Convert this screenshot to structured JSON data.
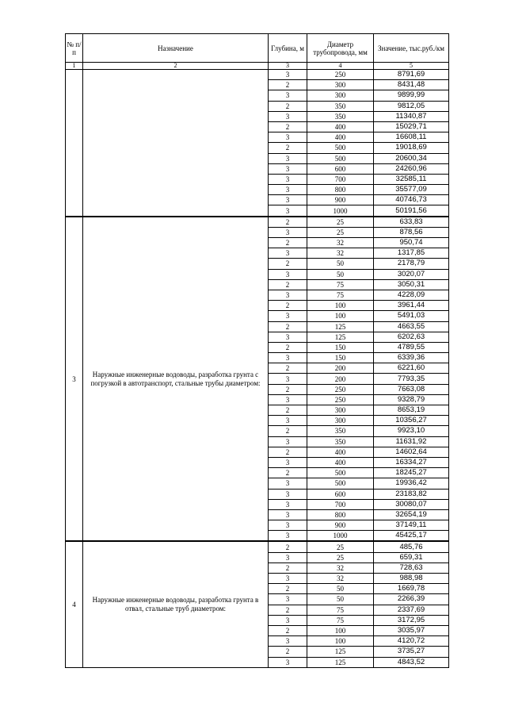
{
  "headers": [
    "№ п/п",
    "Назначение",
    "Глубина, м",
    "Диаметр трубопровода, мм",
    "Значение, тыс.руб./км"
  ],
  "column_numbers": [
    "1",
    "2",
    "3",
    "4",
    "5"
  ],
  "groups": [
    {
      "number": "",
      "description": "",
      "rows": [
        [
          "3",
          "250",
          "8791,69"
        ],
        [
          "2",
          "300",
          "8431,48"
        ],
        [
          "3",
          "300",
          "9899,99"
        ],
        [
          "2",
          "350",
          "9812,05"
        ],
        [
          "3",
          "350",
          "11340,87"
        ],
        [
          "2",
          "400",
          "15029,71"
        ],
        [
          "3",
          "400",
          "16608,11"
        ],
        [
          "2",
          "500",
          "19018,69"
        ],
        [
          "3",
          "500",
          "20600,34"
        ],
        [
          "3",
          "600",
          "24260,96"
        ],
        [
          "3",
          "700",
          "32585,11"
        ],
        [
          "3",
          "800",
          "35577,09"
        ],
        [
          "3",
          "900",
          "40746,73"
        ],
        [
          "3",
          "1000",
          "50191,56"
        ]
      ]
    },
    {
      "number": "3",
      "description": "Наружные инженерные водоводы, разработка грунта с погрузкой в автотранспорт, стальные трубы диаметром:",
      "rows": [
        [
          "2",
          "25",
          "633,83"
        ],
        [
          "3",
          "25",
          "878,56"
        ],
        [
          "2",
          "32",
          "950,74"
        ],
        [
          "3",
          "32",
          "1317,85"
        ],
        [
          "2",
          "50",
          "2178,79"
        ],
        [
          "3",
          "50",
          "3020,07"
        ],
        [
          "2",
          "75",
          "3050,31"
        ],
        [
          "3",
          "75",
          "4228,09"
        ],
        [
          "2",
          "100",
          "3961,44"
        ],
        [
          "3",
          "100",
          "5491,03"
        ],
        [
          "2",
          "125",
          "4663,55"
        ],
        [
          "3",
          "125",
          "6202,63"
        ],
        [
          "2",
          "150",
          "4789,55"
        ],
        [
          "3",
          "150",
          "6339,36"
        ],
        [
          "2",
          "200",
          "6221,60"
        ],
        [
          "3",
          "200",
          "7793,35"
        ],
        [
          "2",
          "250",
          "7663,08"
        ],
        [
          "3",
          "250",
          "9328,79"
        ],
        [
          "2",
          "300",
          "8653,19"
        ],
        [
          "3",
          "300",
          "10356,27"
        ],
        [
          "2",
          "350",
          "9923,10"
        ],
        [
          "3",
          "350",
          "11631,92"
        ],
        [
          "2",
          "400",
          "14602,64"
        ],
        [
          "3",
          "400",
          "16334,27"
        ],
        [
          "2",
          "500",
          "18245,27"
        ],
        [
          "3",
          "500",
          "19936,42"
        ],
        [
          "3",
          "600",
          "23183,82"
        ],
        [
          "3",
          "700",
          "30080,07"
        ],
        [
          "3",
          "800",
          "32654,19"
        ],
        [
          "3",
          "900",
          "37149,11"
        ],
        [
          "3",
          "1000",
          "45425,17"
        ]
      ]
    },
    {
      "number": "4",
      "description": "Наружные инженерные водоводы, разработка грунта в отвал, стальные труб диаметром:",
      "rows": [
        [
          "2",
          "25",
          "485,76"
        ],
        [
          "3",
          "25",
          "659,31"
        ],
        [
          "2",
          "32",
          "728,63"
        ],
        [
          "3",
          "32",
          "988,98"
        ],
        [
          "2",
          "50",
          "1669,78"
        ],
        [
          "3",
          "50",
          "2266,39"
        ],
        [
          "2",
          "75",
          "2337,69"
        ],
        [
          "3",
          "75",
          "3172,95"
        ],
        [
          "2",
          "100",
          "3035,97"
        ],
        [
          "3",
          "100",
          "4120,72"
        ],
        [
          "2",
          "125",
          "3735,27"
        ],
        [
          "3",
          "125",
          "4843,52"
        ]
      ]
    }
  ]
}
